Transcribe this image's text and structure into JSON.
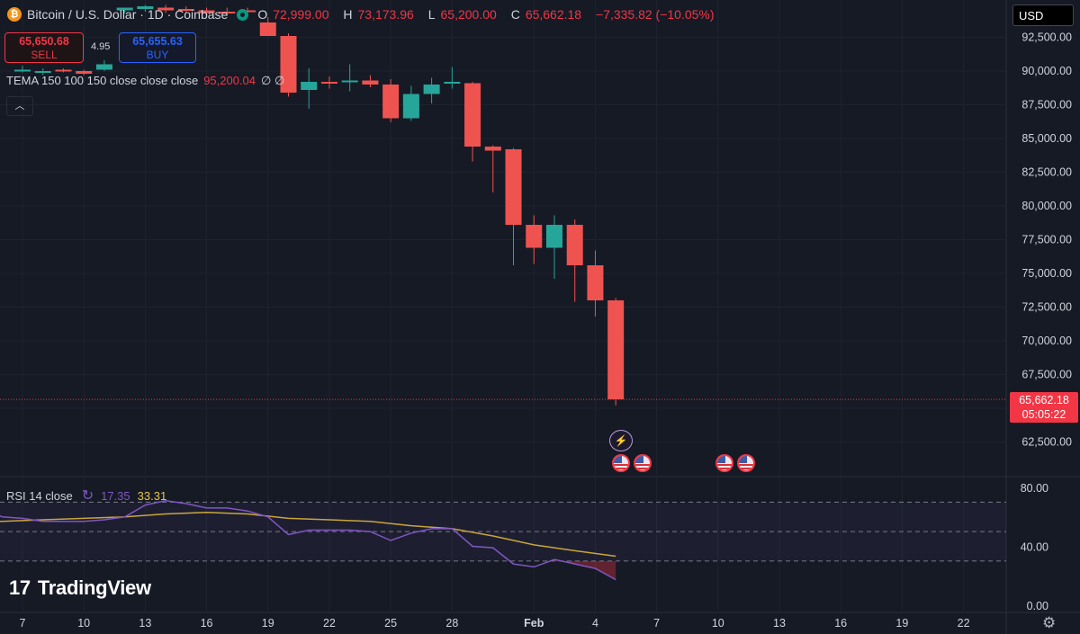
{
  "header": {
    "symbol_title": "Bitcoin / U.S. Dollar · 1D · Coinbase",
    "btc_glyph": "₿",
    "open_label": "O",
    "open": "72,999.00",
    "high_label": "H",
    "high": "73,173.96",
    "low_label": "L",
    "low": "65,200.00",
    "close_label": "C",
    "close": "65,662.18",
    "change": "−7,335.82 (−10.05%)"
  },
  "trade": {
    "sell_price": "65,650.68",
    "sell_label": "SELL",
    "spread": "4.95",
    "buy_price": "65,655.63",
    "buy_label": "BUY"
  },
  "tema": {
    "label": "TEMA 150 100 150 close close close",
    "value": "95,200.04",
    "extra": "∅ ∅"
  },
  "collapse_glyph": "︿",
  "currency": "USD",
  "price_tag": {
    "price": "65,662.18",
    "countdown": "05:05:22"
  },
  "rsi_legend": {
    "label": "RSI 14 close",
    "rsi": "17.35",
    "ma": "33.31"
  },
  "branding": {
    "logo_mark": "17",
    "logo_text": "TradingView"
  },
  "icons": {
    "gear": "⚙",
    "lightning": "⚡"
  },
  "colors": {
    "up": "#26a69a",
    "down": "#ef5350",
    "rsi_line": "#7e57c2",
    "rsi_ma": "#c9a63a",
    "price_line": "#f23645"
  },
  "chart_data": [
    {
      "type": "candlestick",
      "title": "Bitcoin / U.S. Dollar · 1D · Coinbase",
      "y_ticks": [
        62500,
        65000,
        67500,
        70000,
        72500,
        75000,
        77500,
        80000,
        82500,
        85000,
        87500,
        90000,
        92500
      ],
      "y_tick_labels": [
        "62,500.00",
        "65,000.00",
        "67,500.00",
        "70,000.00",
        "72,500.00",
        "75,000.00",
        "77,500.00",
        "80,000.00",
        "82,500.00",
        "85,000.00",
        "87,500.00",
        "90,000.00",
        "92,500.00"
      ],
      "ylim": [
        60500,
        94500
      ],
      "x_ticks": [
        {
          "day": 7,
          "label": "7"
        },
        {
          "day": 10,
          "label": "10"
        },
        {
          "day": 13,
          "label": "13"
        },
        {
          "day": 16,
          "label": "16"
        },
        {
          "day": 19,
          "label": "19"
        },
        {
          "day": 22,
          "label": "22"
        },
        {
          "day": 25,
          "label": "25"
        },
        {
          "day": 28,
          "label": "28"
        },
        {
          "day": 32,
          "label": "Feb"
        },
        {
          "day": 35,
          "label": "4"
        },
        {
          "day": 38,
          "label": "7"
        },
        {
          "day": 41,
          "label": "10"
        },
        {
          "day": 44,
          "label": "13"
        },
        {
          "day": 47,
          "label": "16"
        },
        {
          "day": 50,
          "label": "19"
        },
        {
          "day": 53,
          "label": "22"
        }
      ],
      "candles": [
        {
          "day": 20,
          "o": 92600,
          "h": 92800,
          "l": 88100,
          "c": 88400
        },
        {
          "day": 21,
          "o": 88600,
          "h": 90200,
          "l": 87200,
          "c": 89200
        },
        {
          "day": 22,
          "o": 89200,
          "h": 89600,
          "l": 88700,
          "c": 89100
        },
        {
          "day": 23,
          "o": 89300,
          "h": 90500,
          "l": 88500,
          "c": 89300
        },
        {
          "day": 24,
          "o": 89300,
          "h": 89700,
          "l": 88800,
          "c": 89000
        },
        {
          "day": 25,
          "o": 89000,
          "h": 89400,
          "l": 86200,
          "c": 86500
        },
        {
          "day": 26,
          "o": 86500,
          "h": 88900,
          "l": 86300,
          "c": 88300
        },
        {
          "day": 27,
          "o": 88300,
          "h": 89500,
          "l": 87600,
          "c": 89000
        },
        {
          "day": 28,
          "o": 89200,
          "h": 90300,
          "l": 88700,
          "c": 89200
        },
        {
          "day": 29,
          "o": 89100,
          "h": 89200,
          "l": 83300,
          "c": 84400
        },
        {
          "day": 30,
          "o": 84400,
          "h": 84500,
          "l": 81000,
          "c": 84100
        },
        {
          "day": 31,
          "o": 84200,
          "h": 84300,
          "l": 75600,
          "c": 78600
        },
        {
          "day": 32,
          "o": 78600,
          "h": 79300,
          "l": 75700,
          "c": 76900
        },
        {
          "day": 33,
          "o": 76900,
          "h": 79300,
          "l": 74600,
          "c": 78600
        },
        {
          "day": 34,
          "o": 78600,
          "h": 79000,
          "l": 72900,
          "c": 75600
        },
        {
          "day": 35,
          "o": 75600,
          "h": 76700,
          "l": 71800,
          "c": 73000
        },
        {
          "day": 36,
          "o": 73000,
          "h": 73174,
          "l": 65200,
          "c": 65662
        }
      ],
      "partial_candles_top_left": [
        {
          "day": 7,
          "o": 90000,
          "h": 90400,
          "l": 89900,
          "c": 90100
        },
        {
          "day": 8,
          "o": 90000,
          "h": 90200,
          "l": 89700,
          "c": 90000
        },
        {
          "day": 9,
          "o": 90100,
          "h": 90200,
          "l": 89900,
          "c": 90000
        },
        {
          "day": 10,
          "o": 90000,
          "h": 90100,
          "l": 89700,
          "c": 89800
        },
        {
          "day": 11,
          "o": 90100,
          "h": 90800,
          "l": 90000,
          "c": 90500
        },
        {
          "day": 12,
          "o": 94500,
          "h": 94700,
          "l": 94300,
          "c": 94700
        },
        {
          "day": 13,
          "o": 94600,
          "h": 94900,
          "l": 94400,
          "c": 94800
        },
        {
          "day": 14,
          "o": 94700,
          "h": 94900,
          "l": 94300,
          "c": 94500
        },
        {
          "day": 15,
          "o": 94600,
          "h": 94800,
          "l": 94300,
          "c": 94500
        },
        {
          "day": 16,
          "o": 94500,
          "h": 94700,
          "l": 94200,
          "c": 94300
        },
        {
          "day": 17,
          "o": 94400,
          "h": 94700,
          "l": 94100,
          "c": 94300
        },
        {
          "day": 18,
          "o": 94500,
          "h": 94700,
          "l": 94100,
          "c": 94400
        },
        {
          "day": 19,
          "o": 93600,
          "h": 94000,
          "l": 92600,
          "c": 92600
        }
      ],
      "last_price": 65662.18
    },
    {
      "type": "line",
      "title": "RSI 14 close",
      "ylim": [
        0,
        80
      ],
      "y_ticks": [
        0,
        40,
        80
      ],
      "y_tick_labels": [
        "0.00",
        "40.00",
        "80.00"
      ],
      "band": [
        30,
        70
      ],
      "midline": 50,
      "series": [
        {
          "name": "RSI",
          "values": [
            [
              4,
              68
            ],
            [
              5,
              67
            ],
            [
              6,
              60
            ],
            [
              7,
              59
            ],
            [
              8,
              57
            ],
            [
              9,
              57
            ],
            [
              10,
              57
            ],
            [
              11,
              58
            ],
            [
              12,
              60
            ],
            [
              13,
              68
            ],
            [
              14,
              71
            ],
            [
              15,
              69
            ],
            [
              16,
              66
            ],
            [
              17,
              66
            ],
            [
              18,
              64
            ],
            [
              19,
              60
            ],
            [
              20,
              48
            ],
            [
              21,
              51
            ],
            [
              22,
              51
            ],
            [
              23,
              51
            ],
            [
              24,
              50
            ],
            [
              25,
              44
            ],
            [
              26,
              49
            ],
            [
              27,
              52
            ],
            [
              28,
              52
            ],
            [
              29,
              40
            ],
            [
              30,
              39
            ],
            [
              31,
              28
            ],
            [
              32,
              26
            ],
            [
              33,
              31
            ],
            [
              34,
              28
            ],
            [
              35,
              25
            ],
            [
              36,
              17.35
            ]
          ]
        },
        {
          "name": "RSI-based MA",
          "values": [
            [
              4,
              56
            ],
            [
              6,
              57
            ],
            [
              8,
              58
            ],
            [
              10,
              59
            ],
            [
              12,
              60
            ],
            [
              14,
              62
            ],
            [
              16,
              63
            ],
            [
              18,
              62
            ],
            [
              20,
              59
            ],
            [
              22,
              58
            ],
            [
              24,
              57
            ],
            [
              26,
              54
            ],
            [
              28,
              52
            ],
            [
              30,
              47
            ],
            [
              32,
              41
            ],
            [
              34,
              37
            ],
            [
              36,
              33.31
            ]
          ]
        }
      ]
    }
  ]
}
